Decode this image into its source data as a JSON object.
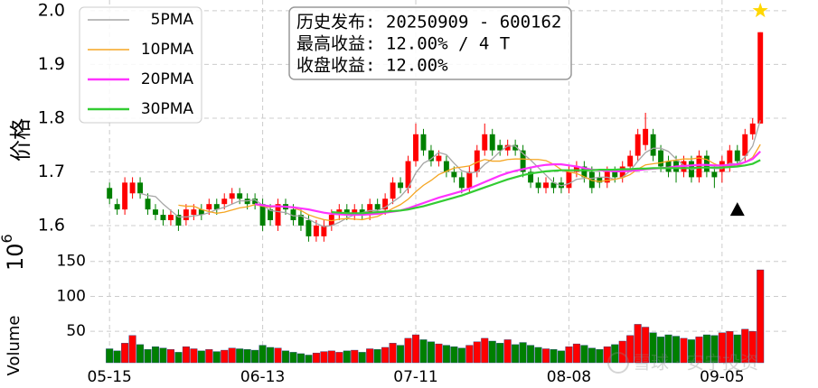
{
  "chart_data": {
    "type": "candlestick",
    "info_lines": [
      "历史发布: 20250909 - 600162",
      "最高收益: 12.00% / 4 T",
      "收盘收益: 12.00%"
    ],
    "y_label": "价格",
    "volume_label": "Volume",
    "volume_scale": {
      "base": "10",
      "exponent": "6"
    },
    "watermark": "雪球 · 安宁投资",
    "up_color": "#ff0000",
    "down_color": "#008000",
    "grid": true,
    "legend": "upper left",
    "xticks": [
      {
        "value": 0,
        "label": "05-15"
      },
      {
        "value": 20,
        "label": "06-13"
      },
      {
        "value": 40,
        "label": "07-11"
      },
      {
        "value": 60,
        "label": "08-08"
      },
      {
        "value": 80,
        "label": "09-05"
      }
    ],
    "ylim": [
      1.563,
      2.02
    ],
    "yticks": [
      1.6,
      1.7,
      1.8,
      1.9,
      {
        "value": 2,
        "label": "2.0"
      }
    ],
    "volume_ylim": [
      5,
      160
    ],
    "volume_yticks": [
      50,
      100,
      150
    ],
    "open": [
      1.67,
      1.64,
      1.63,
      1.66,
      1.68,
      1.65,
      1.63,
      1.62,
      1.61,
      1.62,
      1.61,
      1.62,
      1.63,
      1.63,
      1.64,
      1.64,
      1.65,
      1.66,
      1.65,
      1.65,
      1.64,
      1.63,
      1.6,
      1.64,
      1.63,
      1.62,
      1.61,
      1.58,
      1.58,
      1.6,
      1.62,
      1.63,
      1.62,
      1.63,
      1.62,
      1.64,
      1.63,
      1.65,
      1.68,
      1.67,
      1.72,
      1.77,
      1.74,
      1.72,
      1.72,
      1.7,
      1.69,
      1.67,
      1.7,
      1.74,
      1.77,
      1.75,
      1.74,
      1.75,
      1.74,
      1.7,
      1.68,
      1.67,
      1.68,
      1.68,
      1.67,
      1.7,
      1.71,
      1.7,
      1.69,
      1.68,
      1.7,
      1.69,
      1.71,
      1.73,
      1.75,
      1.77,
      1.74,
      1.72,
      1.72,
      1.7,
      1.72,
      1.69,
      1.73,
      1.7,
      1.7,
      1.71,
      1.74,
      1.73,
      1.77,
      1.79
    ],
    "high": [
      1.68,
      1.65,
      1.69,
      1.69,
      1.69,
      1.66,
      1.64,
      1.63,
      1.63,
      1.63,
      1.64,
      1.64,
      1.64,
      1.65,
      1.65,
      1.66,
      1.67,
      1.67,
      1.66,
      1.66,
      1.65,
      1.64,
      1.65,
      1.65,
      1.64,
      1.63,
      1.62,
      1.61,
      1.61,
      1.63,
      1.64,
      1.64,
      1.64,
      1.64,
      1.65,
      1.65,
      1.66,
      1.69,
      1.69,
      1.73,
      1.79,
      1.78,
      1.75,
      1.74,
      1.73,
      1.71,
      1.7,
      1.71,
      1.75,
      1.79,
      1.78,
      1.76,
      1.76,
      1.76,
      1.75,
      1.71,
      1.69,
      1.69,
      1.69,
      1.69,
      1.71,
      1.72,
      1.72,
      1.71,
      1.7,
      1.71,
      1.71,
      1.72,
      1.74,
      1.78,
      1.81,
      1.78,
      1.75,
      1.73,
      1.73,
      1.73,
      1.73,
      1.74,
      1.74,
      1.71,
      1.73,
      1.75,
      1.75,
      1.78,
      1.8,
      1.96
    ],
    "low": [
      1.64,
      1.62,
      1.62,
      1.65,
      1.65,
      1.62,
      1.61,
      1.6,
      1.6,
      1.59,
      1.6,
      1.61,
      1.61,
      1.62,
      1.62,
      1.63,
      1.64,
      1.64,
      1.63,
      1.63,
      1.59,
      1.6,
      1.59,
      1.62,
      1.6,
      1.59,
      1.57,
      1.57,
      1.57,
      1.59,
      1.61,
      1.61,
      1.61,
      1.61,
      1.61,
      1.62,
      1.62,
      1.64,
      1.66,
      1.66,
      1.71,
      1.73,
      1.71,
      1.71,
      1.69,
      1.68,
      1.66,
      1.66,
      1.69,
      1.73,
      1.73,
      1.73,
      1.73,
      1.73,
      1.69,
      1.67,
      1.66,
      1.66,
      1.66,
      1.66,
      1.66,
      1.69,
      1.68,
      1.66,
      1.67,
      1.67,
      1.68,
      1.68,
      1.7,
      1.72,
      1.74,
      1.72,
      1.7,
      1.69,
      1.68,
      1.69,
      1.68,
      1.68,
      1.69,
      1.67,
      1.68,
      1.7,
      1.71,
      1.72,
      1.76,
      1.79
    ],
    "close": [
      1.65,
      1.63,
      1.68,
      1.68,
      1.66,
      1.63,
      1.62,
      1.61,
      1.62,
      1.6,
      1.63,
      1.63,
      1.62,
      1.64,
      1.63,
      1.65,
      1.66,
      1.65,
      1.64,
      1.64,
      1.6,
      1.61,
      1.64,
      1.63,
      1.61,
      1.6,
      1.58,
      1.6,
      1.6,
      1.62,
      1.63,
      1.62,
      1.63,
      1.62,
      1.64,
      1.63,
      1.65,
      1.68,
      1.67,
      1.72,
      1.77,
      1.74,
      1.72,
      1.73,
      1.7,
      1.69,
      1.67,
      1.7,
      1.74,
      1.77,
      1.74,
      1.74,
      1.75,
      1.74,
      1.7,
      1.68,
      1.67,
      1.68,
      1.67,
      1.67,
      1.7,
      1.71,
      1.69,
      1.67,
      1.68,
      1.7,
      1.69,
      1.71,
      1.73,
      1.77,
      1.78,
      1.73,
      1.71,
      1.7,
      1.7,
      1.72,
      1.69,
      1.73,
      1.7,
      1.69,
      1.72,
      1.74,
      1.72,
      1.77,
      1.79,
      1.96
    ],
    "volume": [
      25,
      22,
      33,
      44,
      31,
      24,
      28,
      26,
      24,
      20,
      28,
      25,
      22,
      24,
      21,
      23,
      26,
      25,
      24,
      23,
      30,
      27,
      26,
      22,
      20,
      18,
      16,
      19,
      21,
      22,
      20,
      22,
      23,
      20,
      25,
      24,
      27,
      33,
      30,
      40,
      45,
      38,
      35,
      32,
      30,
      28,
      26,
      30,
      35,
      40,
      36,
      33,
      38,
      31,
      34,
      30,
      27,
      25,
      24,
      22,
      28,
      32,
      30,
      26,
      24,
      28,
      31,
      36,
      44,
      60,
      56,
      48,
      42,
      45,
      43,
      40,
      38,
      42,
      45,
      44,
      48,
      50,
      45,
      53,
      50,
      138
    ],
    "series": [
      {
        "name": "5PMA",
        "color": "#a6a6a6",
        "values": [
          null,
          null,
          null,
          null,
          1.66,
          1.656,
          1.654,
          1.64,
          1.628,
          1.616,
          1.616,
          1.618,
          1.62,
          1.624,
          1.63,
          1.634,
          1.64,
          1.646,
          1.646,
          1.648,
          1.638,
          1.628,
          1.626,
          1.624,
          1.618,
          1.618,
          1.612,
          1.604,
          1.598,
          1.6,
          1.606,
          1.614,
          1.62,
          1.624,
          1.628,
          1.628,
          1.634,
          1.644,
          1.654,
          1.67,
          1.698,
          1.716,
          1.724,
          1.736,
          1.732,
          1.716,
          1.702,
          1.698,
          1.7,
          1.714,
          1.724,
          1.738,
          1.748,
          1.748,
          1.734,
          1.722,
          1.708,
          1.694,
          1.68,
          1.674,
          1.678,
          1.686,
          1.688,
          1.688,
          1.69,
          1.69,
          1.686,
          1.69,
          1.702,
          1.72,
          1.736,
          1.744,
          1.744,
          1.738,
          1.724,
          1.712,
          1.704,
          1.708,
          1.708,
          1.706,
          1.706,
          1.716,
          1.714,
          1.728,
          1.748,
          1.796
        ]
      },
      {
        "name": "10PMA",
        "color": "#f5a623",
        "values": [
          null,
          null,
          null,
          null,
          null,
          null,
          null,
          null,
          null,
          1.638,
          1.636,
          1.636,
          1.63,
          1.626,
          1.623,
          1.625,
          1.629,
          1.633,
          1.635,
          1.639,
          1.636,
          1.634,
          1.636,
          1.635,
          1.633,
          1.628,
          1.62,
          1.615,
          1.611,
          1.609,
          1.612,
          1.613,
          1.612,
          1.611,
          1.614,
          1.617,
          1.624,
          1.632,
          1.639,
          1.649,
          1.663,
          1.675,
          1.684,
          1.695,
          1.701,
          1.707,
          1.709,
          1.711,
          1.718,
          1.723,
          1.72,
          1.72,
          1.723,
          1.724,
          1.724,
          1.723,
          1.723,
          1.721,
          1.714,
          1.704,
          1.7,
          1.697,
          1.691,
          1.684,
          1.682,
          1.684,
          1.686,
          1.689,
          1.695,
          1.705,
          1.713,
          1.715,
          1.717,
          1.72,
          1.722,
          1.724,
          1.724,
          1.726,
          1.723,
          1.715,
          1.709,
          1.71,
          1.711,
          1.718,
          1.727,
          1.751
        ]
      },
      {
        "name": "20PMA",
        "color": "#ff33ff",
        "values": [
          null,
          null,
          null,
          null,
          null,
          null,
          null,
          null,
          null,
          null,
          null,
          null,
          null,
          null,
          null,
          null,
          null,
          null,
          null,
          1.64,
          1.638,
          1.636,
          1.636,
          1.635,
          1.634,
          1.632,
          1.63,
          1.627,
          1.624,
          1.622,
          1.621,
          1.62,
          1.62,
          1.62,
          1.621,
          1.622,
          1.624,
          1.626,
          1.628,
          1.632,
          1.637,
          1.642,
          1.647,
          1.652,
          1.656,
          1.66,
          1.664,
          1.669,
          1.675,
          1.681,
          1.687,
          1.693,
          1.698,
          1.702,
          1.705,
          1.708,
          1.711,
          1.713,
          1.714,
          1.714,
          1.712,
          1.71,
          1.707,
          1.704,
          1.703,
          1.702,
          1.701,
          1.701,
          1.702,
          1.703,
          1.705,
          1.706,
          1.707,
          1.708,
          1.71,
          1.711,
          1.712,
          1.713,
          1.713,
          1.712,
          1.712,
          1.713,
          1.714,
          1.718,
          1.724,
          1.738
        ]
      },
      {
        "name": "30PMA",
        "color": "#33cc33",
        "values": [
          null,
          null,
          null,
          null,
          null,
          null,
          null,
          null,
          null,
          null,
          null,
          null,
          null,
          null,
          null,
          null,
          null,
          null,
          null,
          null,
          null,
          null,
          null,
          null,
          null,
          null,
          null,
          null,
          null,
          1.625,
          1.624,
          1.623,
          1.623,
          1.623,
          1.624,
          1.625,
          1.626,
          1.627,
          1.628,
          1.63,
          1.633,
          1.636,
          1.64,
          1.644,
          1.648,
          1.652,
          1.656,
          1.661,
          1.666,
          1.671,
          1.676,
          1.681,
          1.686,
          1.69,
          1.694,
          1.697,
          1.699,
          1.701,
          1.702,
          1.703,
          1.703,
          1.703,
          1.703,
          1.703,
          1.704,
          1.704,
          1.704,
          1.705,
          1.705,
          1.706,
          1.706,
          1.707,
          1.707,
          1.707,
          1.707,
          1.707,
          1.707,
          1.708,
          1.708,
          1.708,
          1.708,
          1.709,
          1.71,
          1.712,
          1.715,
          1.722
        ]
      }
    ],
    "signals": [
      {
        "index": 82,
        "price": 1.63,
        "shape": "triangle",
        "color": "#000000"
      },
      {
        "index": 85,
        "price": 2.0,
        "shape": "star",
        "color": "#ffd700"
      }
    ]
  }
}
